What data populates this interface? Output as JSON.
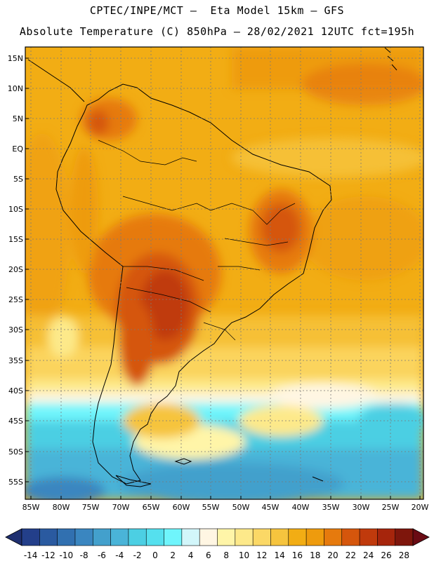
{
  "header": {
    "line1": "CPTEC/INPE/MCT –  Eta Model 15km – GFS",
    "line2": "Absolute Temperature (C) 850hPa – 28/02/2021 12UTC fct=195h"
  },
  "axes": {
    "lat_labels": [
      "15N",
      "10N",
      "5N",
      "EQ",
      "5S",
      "10S",
      "15S",
      "20S",
      "25S",
      "30S",
      "35S",
      "40S",
      "45S",
      "50S",
      "55S"
    ],
    "lon_labels": [
      "85W",
      "80W",
      "75W",
      "70W",
      "65W",
      "60W",
      "55W",
      "50W",
      "45W",
      "40W",
      "35W",
      "30W",
      "25W",
      "20W"
    ]
  },
  "colorbar": {
    "unit": "C",
    "labels": [
      "-14",
      "-12",
      "-10",
      "-8",
      "-6",
      "-4",
      "-2",
      "0",
      "2",
      "4",
      "6",
      "8",
      "10",
      "12",
      "14",
      "16",
      "18",
      "20",
      "22",
      "24",
      "26",
      "28"
    ],
    "colors": [
      "#233f8a",
      "#2a5aa0",
      "#3170b0",
      "#3a86c0",
      "#43a0cc",
      "#4ab4d8",
      "#4ccfe3",
      "#55e0ee",
      "#6ff5fc",
      "#d2f6fa",
      "#fff6e3",
      "#fff5a8",
      "#fde98a",
      "#fbd866",
      "#f6c43e",
      "#f2ad14",
      "#ee9b0d",
      "#e67a0d",
      "#d5560c",
      "#c03a0c",
      "#a6250c",
      "#7e160c"
    ],
    "end_low": "#1e2f70",
    "end_high": "#6a0b14"
  },
  "colors": {
    "land_warm": "#f2ad14",
    "hot_core": "#c03a0c",
    "cold_south": "#4ab4d8",
    "cyan_band": "#6ff5fc"
  }
}
